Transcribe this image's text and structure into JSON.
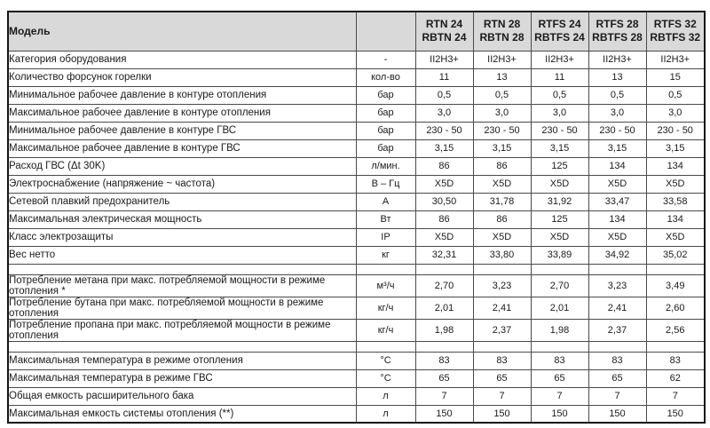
{
  "colors": {
    "header_bg": "#d9d9d9",
    "grid_line": "#4a4a4a",
    "outer_border": "#141414",
    "text": "#1a1a1a",
    "page_bg": "#ffffff"
  },
  "table": {
    "title_cell": "Модель",
    "units_header": "",
    "columns": [
      "RTN 24\nRBTN 24",
      "RTN 28\nRBTN 28",
      "RTFS 24\nRBTFS 24",
      "RTFS 28\nRBTFS 28",
      "RTFS 32\nRBTFS 32"
    ],
    "rows": [
      {
        "label": "Категория оборудования",
        "unit": "-",
        "values": [
          "II2H3+",
          "II2H3+",
          "II2H3+",
          "II2H3+",
          "II2H3+"
        ]
      },
      {
        "label": "Количество форсунок горелки",
        "unit": "кол-во",
        "values": [
          "11",
          "13",
          "11",
          "13",
          "15"
        ]
      },
      {
        "label": "Минимальное рабочее давление в контуре отопления",
        "unit": "бар",
        "values": [
          "0,5",
          "0,5",
          "0,5",
          "0,5",
          "0,5"
        ]
      },
      {
        "label": "Максимальное рабочее давление в контуре отопления",
        "unit": "бар",
        "values": [
          "3,0",
          "3,0",
          "3,0",
          "3,0",
          "3,0"
        ]
      },
      {
        "label": "Минимальное рабочее давление в контуре ГВС",
        "unit": "бар",
        "values": [
          "230 - 50",
          "230 - 50",
          "230 - 50",
          "230 - 50",
          "230 - 50"
        ]
      },
      {
        "label": "Максимальное рабочее давление в контуре ГВС",
        "unit": "бар",
        "values": [
          "3,15",
          "3,15",
          "3,15",
          "3,15",
          "3,15"
        ]
      },
      {
        "label": "Расход ГВС (Δt 30K)",
        "unit": "л/мин.",
        "values": [
          "86",
          "86",
          "125",
          "134",
          "134"
        ]
      },
      {
        "label": "Электроснабжение (напряжение ~ частота)",
        "unit": "В – Гц",
        "values": [
          "X5D",
          "X5D",
          "X5D",
          "X5D",
          "X5D"
        ]
      },
      {
        "label": "Сетевой плавкий предохранитель",
        "unit": "А",
        "values": [
          "30,50",
          "31,78",
          "31,92",
          "33,47",
          "33,58"
        ]
      },
      {
        "label": "Максимальная электрическая мощность",
        "unit": "Вт",
        "values": [
          "86",
          "86",
          "125",
          "134",
          "134"
        ]
      },
      {
        "label": "Класс электрозащиты",
        "unit": "IP",
        "values": [
          "X5D",
          "X5D",
          "X5D",
          "X5D",
          "X5D"
        ]
      },
      {
        "label": "Вес нетто",
        "unit": "кг",
        "values": [
          "32,31",
          "33,80",
          "33,89",
          "34,92",
          "35,02"
        ]
      },
      {
        "type": "spacer"
      },
      {
        "label": "Потребление метана при макс. потребляемой мощности в режиме отопления *",
        "unit": "м³/ч",
        "values": [
          "2,70",
          "3,23",
          "2,70",
          "3,23",
          "3,49"
        ]
      },
      {
        "label": "Потребление бутана при макс. потребляемой мощности в режиме отопления",
        "unit": "кг/ч",
        "values": [
          "2,01",
          "2,41",
          "2,01",
          "2,41",
          "2,60"
        ]
      },
      {
        "label": "Потребление пропана при макс. потребляемой мощности в режиме отопления",
        "unit": "кг/ч",
        "values": [
          "1,98",
          "2,37",
          "1,98",
          "2,37",
          "2,56"
        ]
      },
      {
        "type": "spacer"
      },
      {
        "label": "Максимальная температура в режиме отопления",
        "unit": "°С",
        "values": [
          "83",
          "83",
          "83",
          "83",
          "83"
        ]
      },
      {
        "label": "Максимальная температура в режиме ГВС",
        "unit": "°С",
        "values": [
          "65",
          "65",
          "65",
          "65",
          "62"
        ]
      },
      {
        "label": "Общая емкость расширительного бака",
        "unit": "л",
        "values": [
          "7",
          "7",
          "7",
          "7",
          "7"
        ]
      },
      {
        "label": "Максимальная емкость системы отопления (**)",
        "unit": "л",
        "values": [
          "150",
          "150",
          "150",
          "150",
          "150"
        ]
      }
    ]
  }
}
